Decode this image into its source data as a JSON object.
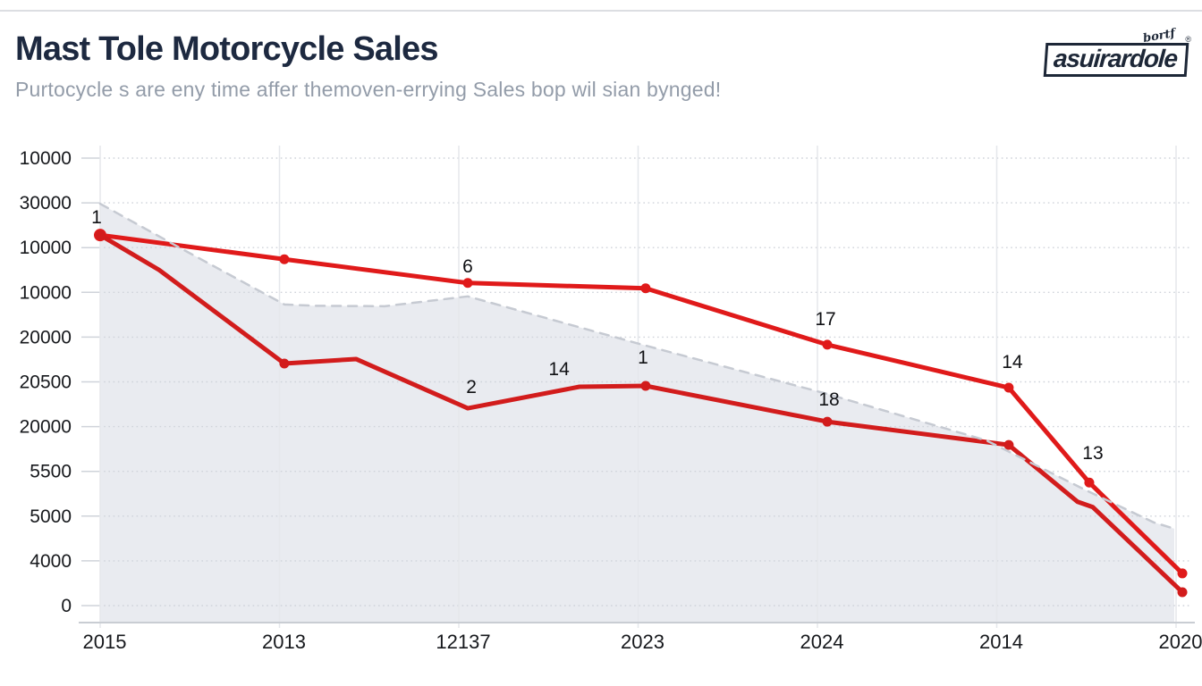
{
  "header": {
    "title": "Mast Tole Motorcycle Sales",
    "subtitle": "Purtocycle s are eny time affer themoven-errying Sales bop wil sian bynged!"
  },
  "logo": {
    "text": "asuirardole",
    "script": "bortf",
    "reg": "®"
  },
  "colors": {
    "title": "#1d2940",
    "subtitle": "#939ca9",
    "axis_text": "#16181c",
    "red_upper": "#e01a1a",
    "red_lower": "#d21c1c",
    "trend": "#c6cad2",
    "area": "#e9ebf0",
    "h_grid": "#cfd3da",
    "v_grid": "#e5e7eb",
    "axis_line": "#c9cdd3",
    "label_text": "#101114",
    "top_rule": "#dcdee2"
  },
  "chart_data": {
    "type": "line",
    "title": "Mast Tole Motorcycle Sales",
    "xlabel": "",
    "ylabel": "",
    "grid": true,
    "legend": false,
    "categories": [
      "2015",
      "2013",
      "12137",
      "2023",
      "2024",
      "2014",
      "2020"
    ],
    "y_ticks_top_to_bottom": [
      "10000",
      "30000",
      "10000",
      "10000",
      "20000",
      "20500",
      "20000",
      "5500",
      "5000",
      "4000",
      "0"
    ],
    "ylim_units": [
      0,
      10
    ],
    "series": [
      {
        "name": "sales-upper",
        "color_key": "red_upper",
        "dash": false,
        "width": 5,
        "points": [
          {
            "u": 0,
            "v": 8.28,
            "m": 2
          },
          {
            "u": 1.027,
            "v": 7.74,
            "m": 1
          },
          {
            "u": 2.05,
            "v": 7.21,
            "m": 1
          },
          {
            "u": 3.042,
            "v": 7.09,
            "m": 1
          },
          {
            "u": 4.055,
            "v": 5.83,
            "m": 1
          },
          {
            "u": 5.067,
            "v": 4.87,
            "m": 1
          },
          {
            "u": 5.516,
            "v": 2.75,
            "m": 1
          },
          {
            "u": 6.035,
            "v": 0.72,
            "m": 1
          }
        ]
      },
      {
        "name": "sales-lower",
        "color_key": "red_lower",
        "dash": false,
        "width": 5,
        "points": [
          {
            "u": 0,
            "v": 8.28,
            "m": 1
          },
          {
            "u": 0.329,
            "v": 7.5,
            "m": 0
          },
          {
            "u": 1.027,
            "v": 5.41,
            "m": 1
          },
          {
            "u": 1.427,
            "v": 5.51,
            "m": 0
          },
          {
            "u": 2.05,
            "v": 4.41,
            "m": 0
          },
          {
            "u": 2.673,
            "v": 4.89,
            "m": 0
          },
          {
            "u": 3.042,
            "v": 4.91,
            "m": 1
          },
          {
            "u": 4.055,
            "v": 4.11,
            "m": 1
          },
          {
            "u": 5.067,
            "v": 3.59,
            "m": 1
          },
          {
            "u": 5.451,
            "v": 2.32,
            "m": 0
          },
          {
            "u": 5.536,
            "v": 2.2,
            "m": 0
          },
          {
            "u": 6.035,
            "v": 0.3,
            "m": 1
          }
        ]
      },
      {
        "name": "trend-area",
        "color_key": "trend",
        "dash": true,
        "width": 2.5,
        "area": true,
        "points": [
          {
            "u": 0,
            "v": 8.98
          },
          {
            "u": 0.424,
            "v": 8.04
          },
          {
            "u": 1.027,
            "v": 6.73
          },
          {
            "u": 1.2,
            "v": 6.7
          },
          {
            "u": 1.586,
            "v": 6.69
          },
          {
            "u": 2.05,
            "v": 6.91
          },
          {
            "u": 3.042,
            "v": 5.81
          },
          {
            "u": 4.055,
            "v": 4.73
          },
          {
            "u": 4.943,
            "v": 3.69
          },
          {
            "u": 5.491,
            "v": 2.59
          },
          {
            "u": 5.875,
            "v": 1.86
          },
          {
            "u": 5.99,
            "v": 1.72
          }
        ]
      }
    ],
    "point_labels": [
      {
        "text": "1",
        "u": -0.02,
        "v": 8.68
      },
      {
        "text": "6",
        "u": 2.05,
        "v": 7.58
      },
      {
        "text": "2",
        "u": 2.07,
        "v": 4.89
      },
      {
        "text": "14",
        "u": 2.559,
        "v": 5.29
      },
      {
        "text": "1",
        "u": 3.027,
        "v": 5.55
      },
      {
        "text": "17",
        "u": 4.045,
        "v": 6.41
      },
      {
        "text": "18",
        "u": 4.065,
        "v": 4.61
      },
      {
        "text": "14",
        "u": 5.087,
        "v": 5.45
      },
      {
        "text": "13",
        "u": 5.536,
        "v": 3.41
      }
    ]
  }
}
